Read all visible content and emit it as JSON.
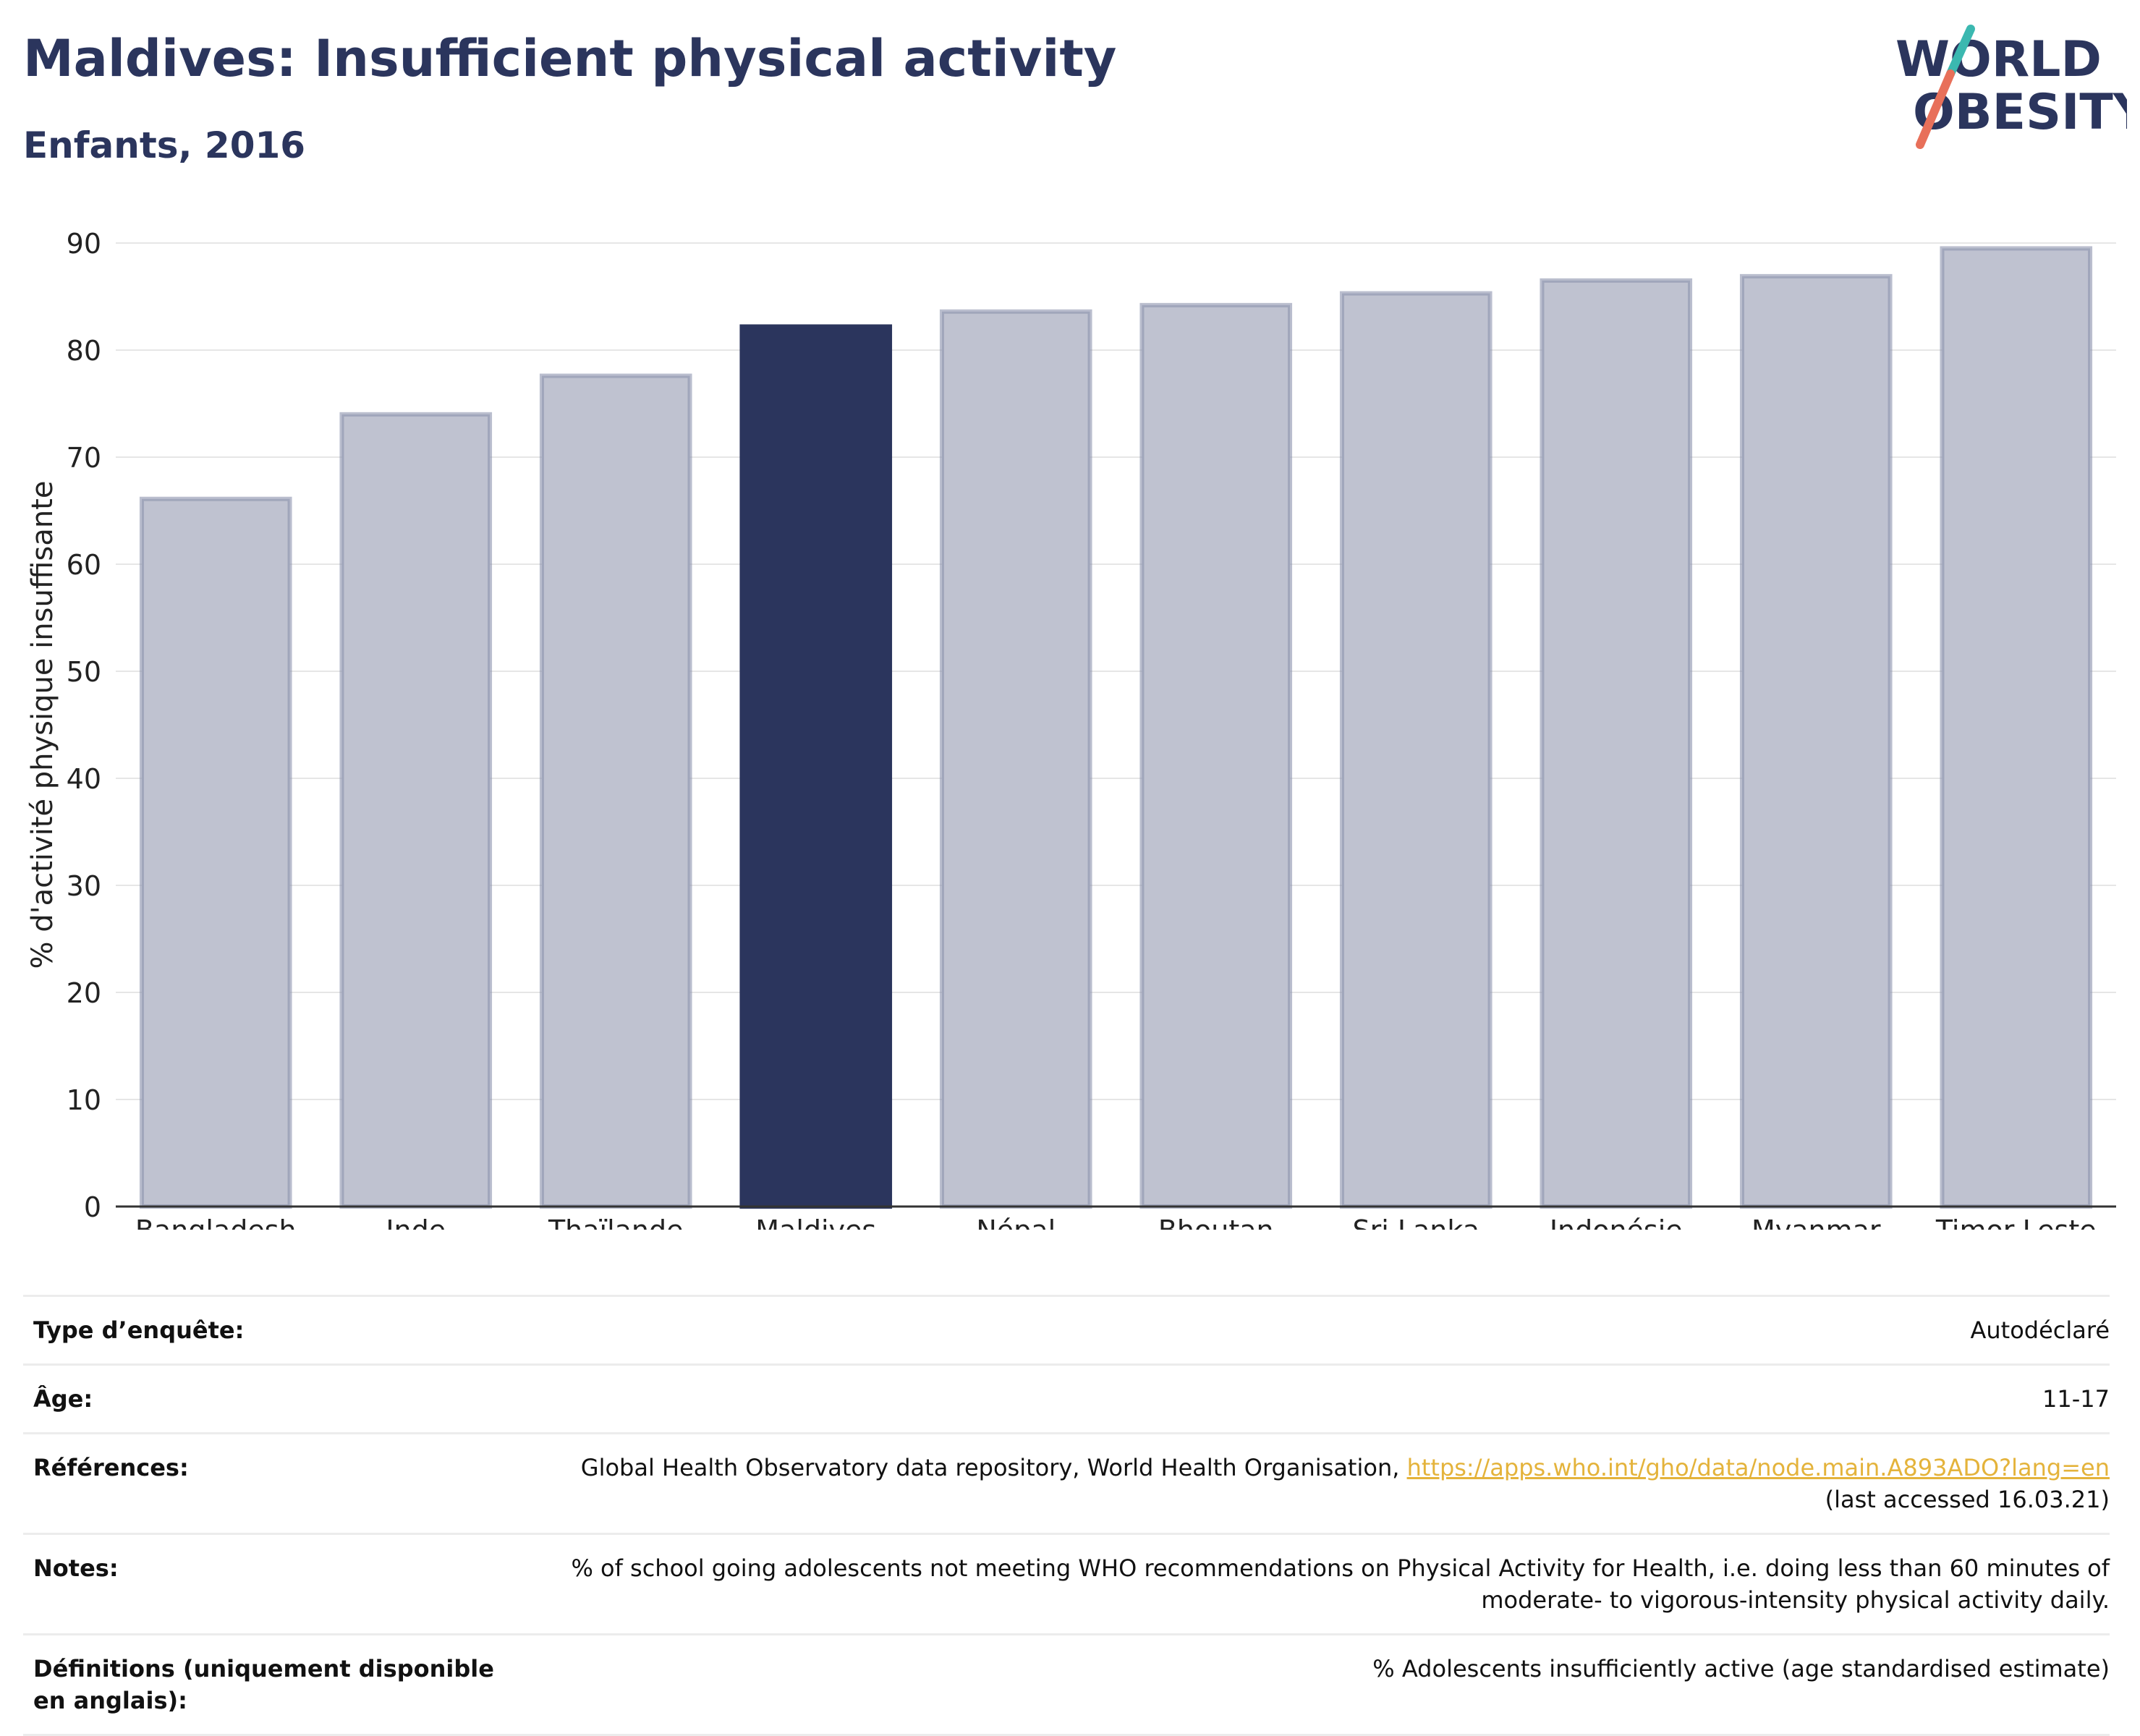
{
  "header": {
    "title": "Maldives: Insufficient physical activity",
    "subtitle": "Enfants, 2016"
  },
  "logo": {
    "line1": "WORLD",
    "line2": "OBESITY"
  },
  "colors": {
    "highlight": "#2b355d",
    "bar": "#bfc2d0",
    "bar_border": "#8c93ad",
    "accent_teal": "#3bb8b0",
    "accent_red": "#e8705a"
  },
  "chart_data": {
    "type": "bar",
    "ylabel": "% d'activité physique insuffisante",
    "xlabel": "",
    "ylim": [
      0,
      90
    ],
    "yticks": [
      0,
      10,
      20,
      30,
      40,
      50,
      60,
      70,
      80,
      90
    ],
    "grid": true,
    "highlight": "Maldives",
    "categories": [
      "Bangladesh",
      "Inde",
      "Thaïlande",
      "Maldives",
      "Népal",
      "Bhoutan",
      "Sri Lanka",
      "Indonésie",
      "Myanmar",
      "Timor-Leste"
    ],
    "values": [
      66.1,
      74.0,
      77.6,
      82.2,
      83.6,
      84.2,
      85.3,
      86.5,
      86.9,
      89.5
    ]
  },
  "meta": {
    "survey_label": "Type d’enquête:",
    "survey_value": "Autodéclaré",
    "age_label": "Âge:",
    "age_value": "11-17",
    "ref_label": "Références:",
    "ref_text": "Global Health Observatory data repository, World Health Organisation, ",
    "ref_link": "https://apps.who.int/gho/data/node.main.A893ADO?lang=en",
    "ref_accessed": "(last accessed 16.03.21)",
    "notes_label": "Notes:",
    "notes_line1": "% of school going adolescents not meeting WHO recommendations on Physical Activity for Health, i.e. doing less than 60 minutes of",
    "notes_line2": "moderate- to vigorous-intensity physical activity daily.",
    "def_label": "Définitions (uniquement disponible en anglais):",
    "def_value": "% Adolescents insufficiently active (age standardised estimate)"
  }
}
